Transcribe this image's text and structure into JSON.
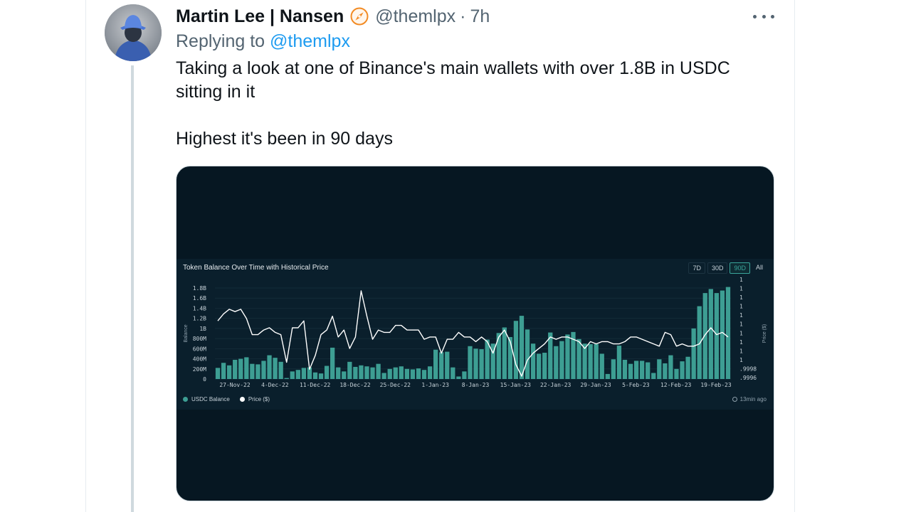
{
  "tweet": {
    "author_name": "Martin Lee | Nansen",
    "handle": "@themlpx",
    "separator": "·",
    "time": "7h",
    "replying_to_label": "Replying to",
    "replying_to_handle": "@themlpx",
    "text_line1": "Taking a look at one of Binance's main wallets with over 1.8B in USDC",
    "text_line2": "sitting in it",
    "text_line3": "Highest it's been in 90 days",
    "more_icon": "more-dots-icon",
    "badge_icon": "nansen-compass-badge-icon"
  },
  "chart_panel": {
    "title": "Token Balance Over Time with Historical Price",
    "ranges": [
      "7D",
      "30D",
      "90D",
      "All"
    ],
    "active_range": "90D",
    "legend_balance": "USDC Balance",
    "legend_price": "Price ($)",
    "updated": "13min ago"
  },
  "chart_data": {
    "type": "bar",
    "title": "Token Balance Over Time with Historical Price",
    "ylabel": "Balance",
    "y2label": "Price ($)",
    "ylim": [
      0,
      1800000000
    ],
    "y_ticks": [
      "0",
      "200M",
      "400M",
      "600M",
      "800M",
      "1B",
      "1.2B",
      "1.4B",
      "1.6B",
      "1.8B"
    ],
    "y2_ticks": [
      ".9996",
      ".9998",
      "1",
      "1",
      "1",
      "1",
      "1",
      "1",
      "1",
      "1",
      "1",
      "1"
    ],
    "x_ticks": [
      "27-Nov-22",
      "4-Dec-22",
      "11-Dec-22",
      "18-Dec-22",
      "25-Dec-22",
      "1-Jan-23",
      "8-Jan-23",
      "15-Jan-23",
      "22-Jan-23",
      "29-Jan-23",
      "5-Feb-23",
      "12-Feb-23",
      "19-Feb-23"
    ],
    "bar_color": "#3d9e93",
    "line_color": "#ffffff",
    "series": [
      {
        "name": "USDC Balance",
        "values": [
          220000000,
          320000000,
          270000000,
          380000000,
          400000000,
          430000000,
          300000000,
          290000000,
          360000000,
          470000000,
          420000000,
          340000000,
          20000000,
          150000000,
          180000000,
          220000000,
          230000000,
          130000000,
          110000000,
          260000000,
          620000000,
          230000000,
          150000000,
          340000000,
          240000000,
          270000000,
          250000000,
          230000000,
          300000000,
          120000000,
          200000000,
          230000000,
          250000000,
          200000000,
          190000000,
          210000000,
          180000000,
          250000000,
          580000000,
          530000000,
          540000000,
          230000000,
          50000000,
          150000000,
          650000000,
          600000000,
          590000000,
          780000000,
          700000000,
          910000000,
          1020000000,
          830000000,
          1150000000,
          1250000000,
          980000000,
          700000000,
          500000000,
          520000000,
          920000000,
          650000000,
          750000000,
          880000000,
          930000000,
          790000000,
          700000000,
          690000000,
          690000000,
          500000000,
          100000000,
          390000000,
          660000000,
          380000000,
          300000000,
          360000000,
          360000000,
          330000000,
          120000000,
          390000000,
          310000000,
          470000000,
          200000000,
          350000000,
          440000000,
          1000000000,
          1440000000,
          1700000000,
          1780000000,
          1700000000,
          1750000000,
          1820000000
        ]
      },
      {
        "name": "Price ($)",
        "values": [
          0.9999,
          0.99993,
          0.99995,
          0.99994,
          0.99995,
          0.99991,
          0.99984,
          0.99984,
          0.99986,
          0.99987,
          0.99985,
          0.99984,
          0.99972,
          0.99987,
          0.99987,
          0.9999,
          0.99969,
          0.99975,
          0.99984,
          0.99986,
          0.99992,
          0.99983,
          0.99986,
          0.99978,
          0.99983,
          1.00003,
          0.99992,
          0.99982,
          0.99986,
          0.99985,
          0.99985,
          0.99988,
          0.99988,
          0.99986,
          0.99986,
          0.99986,
          0.99982,
          0.99983,
          0.99983,
          0.99976,
          0.99982,
          0.99982,
          0.99985,
          0.99983,
          0.99983,
          0.99981,
          0.99983,
          0.99981,
          0.99976,
          0.99983,
          0.99986,
          0.99981,
          0.99971,
          0.99966,
          0.99973,
          0.99976,
          0.99978,
          0.9998,
          0.99983,
          0.99982,
          0.99983,
          0.99983,
          0.99982,
          0.99981,
          0.99978,
          0.99981,
          0.9998,
          0.99981,
          0.99981,
          0.9998,
          0.9998,
          0.99981,
          0.99983,
          0.99983,
          0.99982,
          0.99981,
          0.9998,
          0.99979,
          0.99985,
          0.99984,
          0.99979,
          0.9998,
          0.99979,
          0.99979,
          0.9998,
          0.99984,
          0.99987,
          0.99984,
          0.99985,
          0.99983
        ]
      }
    ],
    "grid": true,
    "legend_position": "bottom-left"
  }
}
